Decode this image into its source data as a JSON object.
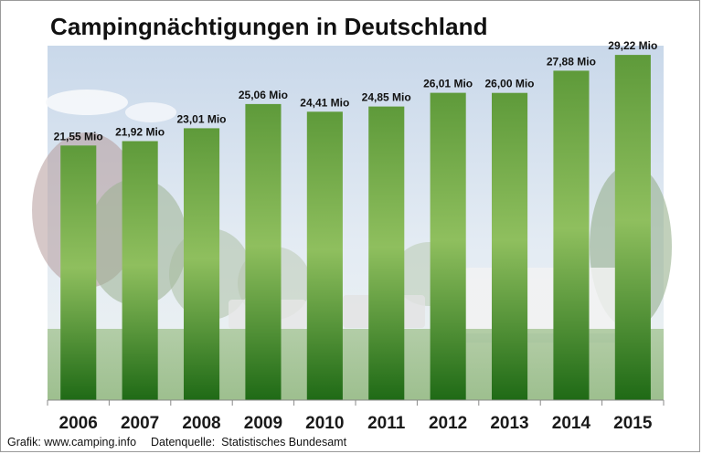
{
  "chart_data": {
    "type": "bar",
    "title": "Campingnächtigungen in Deutschland",
    "categories": [
      "2006",
      "2007",
      "2008",
      "2009",
      "2010",
      "2011",
      "2012",
      "2013",
      "2014",
      "2015"
    ],
    "values": [
      21.55,
      21.92,
      23.01,
      25.06,
      24.41,
      24.85,
      26.01,
      26.0,
      27.88,
      29.22
    ],
    "data_labels": [
      "21,55 Mio",
      "21,92 Mio",
      "23,01 Mio",
      "25,06 Mio",
      "24,41 Mio",
      "24,85 Mio",
      "26,01 Mio",
      "26,00 Mio",
      "27,88 Mio",
      "29,22 Mio"
    ],
    "xlabel": "",
    "ylabel": "",
    "ylim": [
      0,
      30
    ],
    "grid": false,
    "legend": "none",
    "bar_color_top": "#5e9a3a",
    "bar_color_mid": "#8fbf5e",
    "bar_color_bottom": "#1f6a16"
  },
  "footer": {
    "credit": "Grafik: www.camping.info",
    "source": "Datenquelle:  Statistisches Bundesamt"
  }
}
